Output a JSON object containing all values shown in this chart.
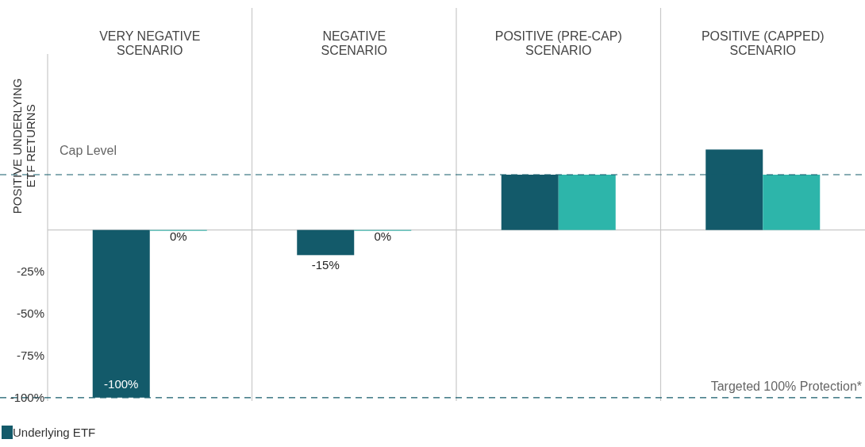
{
  "chart_data": {
    "type": "bar",
    "categories": [
      "VERY NEGATIVE SCENARIO",
      "NEGATIVE SCENARIO",
      "POSITIVE (PRE-CAP) SCENARIO",
      "POSITIVE (CAPPED) SCENARIO"
    ],
    "series": [
      {
        "name": "Underlying ETF",
        "color": "#135a6a",
        "values": [
          -100,
          -15,
          33,
          48
        ],
        "value_labels": [
          "-100%",
          "-15%",
          null,
          null
        ]
      },
      {
        "color": "#2db5aa",
        "values": [
          0,
          0,
          33,
          33
        ],
        "value_labels": [
          "0%",
          "0%",
          null,
          null
        ]
      }
    ],
    "ylabel": "POSITIVE UNDERLYING ETF RETURNS",
    "ylim": [
      -102,
      105
    ],
    "yticks": [
      {
        "value": -25,
        "label": "-25%"
      },
      {
        "value": -50,
        "label": "-50%"
      },
      {
        "value": -75,
        "label": "-75%"
      },
      {
        "value": -100,
        "label": "-100%"
      }
    ],
    "ref_lines": [
      {
        "axis": "y",
        "value": 33,
        "label": "Cap Level",
        "color": "#135a6a",
        "line_style": "dashed"
      },
      {
        "axis": "y",
        "value": -100,
        "label": "Targeted 100% Protection*",
        "color": "#135a6a",
        "line_style": "dashed"
      }
    ],
    "grid": false,
    "legend": "bottom left"
  }
}
